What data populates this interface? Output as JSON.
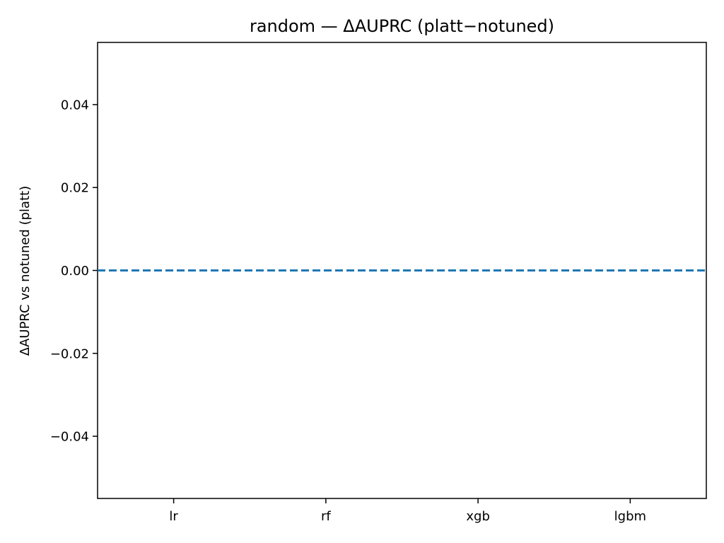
{
  "chart_data": {
    "type": "line",
    "title": "random — ΔAUPRC (platt−notuned)",
    "xlabel": "",
    "ylabel": "ΔAUPRC vs notuned (platt)",
    "categories": [
      "lr",
      "rf",
      "xgb",
      "lgbm"
    ],
    "series": [],
    "reference_line": {
      "y": 0.0,
      "style": "dashed",
      "color": "#1f77b4"
    },
    "ylim": [
      -0.055,
      0.055
    ],
    "yticks": [
      -0.04,
      -0.02,
      0.0,
      0.02,
      0.04
    ],
    "ytick_labels": [
      "−0.04",
      "−0.02",
      "0.00",
      "0.02",
      "0.04"
    ],
    "grid": false,
    "legend": "none"
  }
}
